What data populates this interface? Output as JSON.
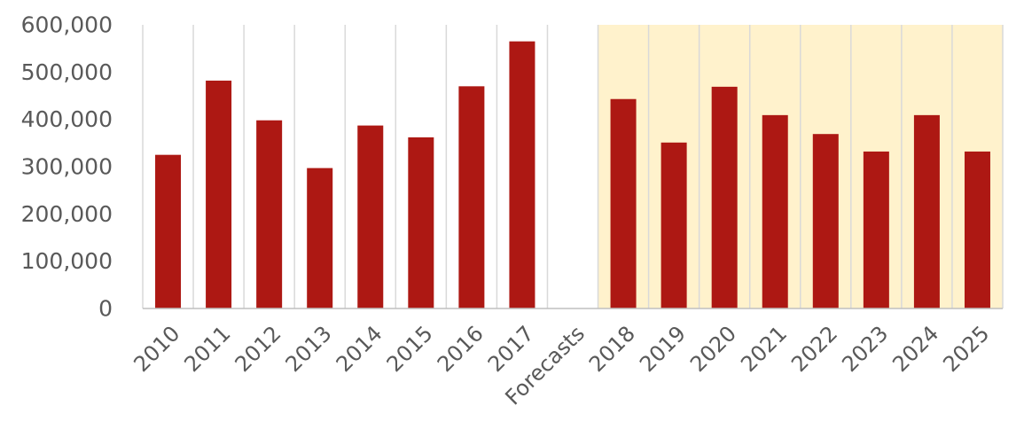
{
  "chart_data": {
    "type": "bar",
    "title": "",
    "xlabel": "",
    "ylabel": "",
    "categories": [
      "2010",
      "2011",
      "2012",
      "2013",
      "2014",
      "2015",
      "2016",
      "2017",
      "Forecasts",
      "2018",
      "2019",
      "2020",
      "2021",
      "2022",
      "2023",
      "2024",
      "2025"
    ],
    "values": [
      325000,
      482000,
      398000,
      297000,
      387000,
      362000,
      470000,
      565000,
      null,
      443000,
      351000,
      469000,
      409000,
      369000,
      332000,
      409000,
      332000
    ],
    "ylim": [
      0,
      600000
    ],
    "yticks": [
      0,
      100000,
      200000,
      300000,
      400000,
      500000,
      600000
    ],
    "ytick_labels": [
      "0",
      "100,000",
      "200,000",
      "300,000",
      "400,000",
      "500,000",
      "600,000"
    ],
    "grid": "vertical",
    "legend": "none",
    "highlight_range": {
      "from": "2018",
      "to": "2025"
    },
    "colors": {
      "bar": "#ad1813",
      "highlight": "#fff2cc",
      "grid": "#d9d9d9",
      "axis": "#bfbfbf",
      "text": "#595959"
    }
  }
}
